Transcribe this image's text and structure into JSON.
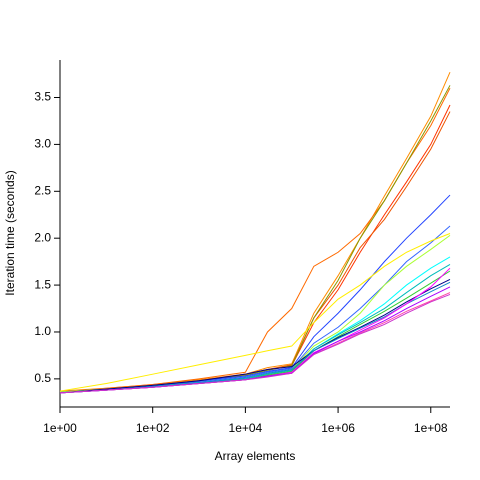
{
  "chart_data": {
    "type": "line",
    "xlabel": "Array elements",
    "ylabel": "Iteration time (seconds)",
    "log_x": true,
    "x": [
      1,
      10,
      100,
      1000,
      10000,
      30000,
      100000,
      300000,
      1000000,
      3000000,
      10000000,
      30000000,
      100000000,
      260000000
    ],
    "xlim": [
      1,
      260000000
    ],
    "xticks": [
      {
        "value": 1,
        "label": "1e+00"
      },
      {
        "value": 100,
        "label": "1e+02"
      },
      {
        "value": 10000,
        "label": "1e+04"
      },
      {
        "value": 1000000,
        "label": "1e+06"
      },
      {
        "value": 100000000,
        "label": "1e+08"
      }
    ],
    "ylim": [
      0.2,
      3.9
    ],
    "yticks": [
      0.5,
      {
        "value": 1,
        "label": "1.0"
      },
      1.5,
      {
        "value": 2,
        "label": "2.0"
      },
      2.5,
      {
        "value": 3,
        "label": "3.0"
      },
      3.5
    ],
    "series": [
      {
        "color": "#ff8c00",
        "values": [
          0.37,
          0.4,
          0.44,
          0.49,
          0.55,
          0.62,
          0.66,
          1.2,
          1.6,
          2.0,
          2.45,
          2.85,
          3.3,
          3.77
        ]
      },
      {
        "color": "#ff6a00",
        "values": [
          0.36,
          0.4,
          0.44,
          0.5,
          0.57,
          1.0,
          1.25,
          1.7,
          1.85,
          2.05,
          2.4,
          2.8,
          3.2,
          3.6
        ]
      },
      {
        "color": "#ff3300",
        "values": [
          0.36,
          0.39,
          0.43,
          0.48,
          0.55,
          0.6,
          0.64,
          1.1,
          1.45,
          1.85,
          2.25,
          2.6,
          3.0,
          3.42
        ]
      },
      {
        "color": "#ee5500",
        "values": [
          0.36,
          0.39,
          0.43,
          0.48,
          0.54,
          0.6,
          0.65,
          1.15,
          1.5,
          1.9,
          2.2,
          2.55,
          2.95,
          3.35
        ]
      },
      {
        "color": "#889900",
        "values": [
          0.36,
          0.39,
          0.43,
          0.48,
          0.54,
          0.59,
          0.64,
          1.15,
          1.55,
          2.0,
          2.4,
          2.8,
          3.25,
          3.63
        ]
      },
      {
        "color": "#2244ff",
        "values": [
          0.36,
          0.39,
          0.43,
          0.48,
          0.53,
          0.58,
          0.62,
          0.95,
          1.2,
          1.45,
          1.75,
          2.0,
          2.25,
          2.46
        ]
      },
      {
        "color": "#3366ff",
        "values": [
          0.36,
          0.39,
          0.42,
          0.47,
          0.52,
          0.57,
          0.61,
          0.88,
          1.05,
          1.25,
          1.5,
          1.75,
          1.95,
          2.13
        ]
      },
      {
        "color": "#ffee00",
        "values": [
          0.37,
          0.45,
          0.55,
          0.65,
          0.75,
          0.8,
          0.85,
          1.1,
          1.35,
          1.5,
          1.7,
          1.85,
          1.97,
          2.05
        ]
      },
      {
        "color": "#aaff33",
        "values": [
          0.36,
          0.39,
          0.42,
          0.46,
          0.5,
          0.55,
          0.6,
          0.85,
          1.0,
          1.2,
          1.5,
          1.7,
          1.88,
          2.03
        ]
      },
      {
        "color": "#00ffff",
        "values": [
          0.35,
          0.38,
          0.42,
          0.46,
          0.5,
          0.54,
          0.58,
          0.82,
          0.98,
          1.12,
          1.3,
          1.5,
          1.68,
          1.8
        ]
      },
      {
        "color": "#00bbbb",
        "values": [
          0.35,
          0.38,
          0.42,
          0.46,
          0.5,
          0.55,
          0.59,
          0.82,
          0.97,
          1.1,
          1.25,
          1.42,
          1.6,
          1.72
        ]
      },
      {
        "color": "#33cc33",
        "values": [
          0.35,
          0.38,
          0.41,
          0.45,
          0.49,
          0.54,
          0.58,
          0.8,
          0.95,
          1.08,
          1.22,
          1.36,
          1.52,
          1.65
        ]
      },
      {
        "color": "#000088",
        "values": [
          0.35,
          0.39,
          0.43,
          0.48,
          0.55,
          0.6,
          0.63,
          0.8,
          0.94,
          1.05,
          1.18,
          1.32,
          1.46,
          1.56
        ]
      },
      {
        "color": "#1188cc",
        "values": [
          0.35,
          0.38,
          0.42,
          0.46,
          0.51,
          0.56,
          0.6,
          0.8,
          0.93,
          1.04,
          1.16,
          1.3,
          1.43,
          1.53
        ]
      },
      {
        "color": "#ff00ff",
        "values": [
          0.35,
          0.38,
          0.41,
          0.45,
          0.49,
          0.53,
          0.57,
          0.78,
          0.9,
          1.02,
          1.15,
          1.3,
          1.48,
          1.68
        ]
      },
      {
        "color": "#ff44aa",
        "values": [
          0.35,
          0.38,
          0.41,
          0.45,
          0.49,
          0.53,
          0.56,
          0.76,
          0.88,
          0.99,
          1.1,
          1.22,
          1.33,
          1.42
        ]
      },
      {
        "color": "#aa00ff",
        "values": [
          0.35,
          0.38,
          0.41,
          0.45,
          0.49,
          0.53,
          0.56,
          0.77,
          0.9,
          1.0,
          1.12,
          1.25,
          1.38,
          1.48
        ]
      },
      {
        "color": "#cc33cc",
        "values": [
          0.35,
          0.38,
          0.41,
          0.45,
          0.49,
          0.52,
          0.56,
          0.76,
          0.87,
          0.98,
          1.08,
          1.2,
          1.32,
          1.4
        ]
      }
    ]
  }
}
